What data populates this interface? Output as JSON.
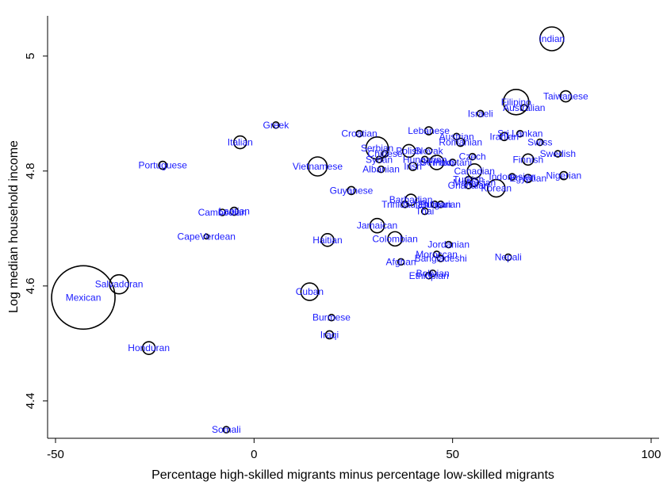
{
  "chart_data": {
    "type": "scatter",
    "title": "",
    "xlabel": "Percentage high-skilled migrants minus percentage low-skilled migrants",
    "ylabel": "Log median household income",
    "xlim": [
      -52,
      102
    ],
    "ylim": [
      4.335,
      5.07
    ],
    "xticks": [
      -50,
      0,
      50,
      100
    ],
    "xtick_labels": [
      "-50",
      "0",
      "50",
      "100"
    ],
    "yticks": [
      4.4,
      4.6,
      4.8,
      5.0
    ],
    "ytick_labels": [
      "4.4",
      "4.6",
      "4.8",
      "5"
    ],
    "grid": false,
    "legend": "none",
    "marker": "hollow circle (size proportional to group weight)",
    "colors": {
      "marker": "#000000",
      "label": "#1a1aff"
    },
    "points": [
      {
        "label": "Indian",
        "x": 75,
        "y": 5.03,
        "size": 15
      },
      {
        "label": "Taiwanese",
        "x": 78.5,
        "y": 4.93,
        "size": 7
      },
      {
        "label": "Filipino",
        "x": 66,
        "y": 4.92,
        "size": 16
      },
      {
        "label": "Australian",
        "x": 68,
        "y": 4.91,
        "size": 4
      },
      {
        "label": "Israeli",
        "x": 57,
        "y": 4.9,
        "size": 4
      },
      {
        "label": "Greek",
        "x": 5.5,
        "y": 4.88,
        "size": 4
      },
      {
        "label": "Lebanese",
        "x": 44,
        "y": 4.87,
        "size": 5
      },
      {
        "label": "Sri Lankan",
        "x": 67,
        "y": 4.865,
        "size": 4
      },
      {
        "label": "Croatian",
        "x": 26.5,
        "y": 4.865,
        "size": 4
      },
      {
        "label": "Austrian",
        "x": 51,
        "y": 4.86,
        "size": 4
      },
      {
        "label": "Iranian",
        "x": 63,
        "y": 4.86,
        "size": 5
      },
      {
        "label": "Italian",
        "x": -3.5,
        "y": 4.85,
        "size": 8
      },
      {
        "label": "Romanian",
        "x": 52,
        "y": 4.85,
        "size": 5
      },
      {
        "label": "Swiss",
        "x": 72,
        "y": 4.85,
        "size": 4
      },
      {
        "label": "Serbian",
        "x": 31,
        "y": 4.84,
        "size": 14
      },
      {
        "label": "Polish",
        "x": 39,
        "y": 4.835,
        "size": 8
      },
      {
        "label": "Slovak",
        "x": 44,
        "y": 4.835,
        "size": 4
      },
      {
        "label": "Chinese",
        "x": 33,
        "y": 4.83,
        "size": 4
      },
      {
        "label": "Swedish",
        "x": 76.5,
        "y": 4.83,
        "size": 4
      },
      {
        "label": "Czech",
        "x": 55,
        "y": 4.825,
        "size": 4
      },
      {
        "label": "Syrian",
        "x": 31.5,
        "y": 4.82,
        "size": 4
      },
      {
        "label": "Hungarian",
        "x": 43,
        "y": 4.82,
        "size": 4
      },
      {
        "label": "Pakistani",
        "x": 50,
        "y": 4.815,
        "size": 4
      },
      {
        "label": "Finnish",
        "x": 69,
        "y": 4.82,
        "size": 7
      },
      {
        "label": "Portuguese",
        "x": -23,
        "y": 4.81,
        "size": 5
      },
      {
        "label": "Vietnamese",
        "x": 16,
        "y": 4.808,
        "size": 12
      },
      {
        "label": "German",
        "x": 46,
        "y": 4.815,
        "size": 9
      },
      {
        "label": "Irish",
        "x": 40,
        "y": 4.808,
        "size": 5
      },
      {
        "label": "Albanian",
        "x": 32,
        "y": 4.803,
        "size": 4
      },
      {
        "label": "Canadian",
        "x": 55.5,
        "y": 4.8,
        "size": 9
      },
      {
        "label": "Nigerian",
        "x": 78,
        "y": 4.792,
        "size": 5
      },
      {
        "label": "Indonesian",
        "x": 65,
        "y": 4.79,
        "size": 4
      },
      {
        "label": "Egyptian",
        "x": 69,
        "y": 4.787,
        "size": 5
      },
      {
        "label": "Turkish",
        "x": 54,
        "y": 4.785,
        "size": 4
      },
      {
        "label": "Malaysian",
        "x": 55.5,
        "y": 4.78,
        "size": 5
      },
      {
        "label": "Ghanaian",
        "x": 54,
        "y": 4.775,
        "size": 4
      },
      {
        "label": "Korean",
        "x": 61,
        "y": 4.77,
        "size": 11
      },
      {
        "label": "Guyanese",
        "x": 24.5,
        "y": 4.766,
        "size": 5
      },
      {
        "label": "Barbadian",
        "x": 39.5,
        "y": 4.75,
        "size": 7
      },
      {
        "label": "Trinidadian",
        "x": 38,
        "y": 4.742,
        "size": 4
      },
      {
        "label": "Bulgarian",
        "x": 47,
        "y": 4.742,
        "size": 4
      },
      {
        "label": "Eritrean",
        "x": 45.5,
        "y": 4.742,
        "size": 4
      },
      {
        "label": "Cambodian",
        "x": -8,
        "y": 4.728,
        "size": 4
      },
      {
        "label": "Laotian",
        "x": -5,
        "y": 4.73,
        "size": 5
      },
      {
        "label": "Thai",
        "x": 43,
        "y": 4.73,
        "size": 4
      },
      {
        "label": "Jamaican",
        "x": 31,
        "y": 4.705,
        "size": 9
      },
      {
        "label": "CapeVerdean",
        "x": -12,
        "y": 4.686,
        "size": 3
      },
      {
        "label": "Colombian",
        "x": 35.5,
        "y": 4.682,
        "size": 9
      },
      {
        "label": "Haitian",
        "x": 18.5,
        "y": 4.68,
        "size": 8
      },
      {
        "label": "Jordanian",
        "x": 49,
        "y": 4.672,
        "size": 4
      },
      {
        "label": "Moroccan",
        "x": 46,
        "y": 4.655,
        "size": 4
      },
      {
        "label": "Nepali",
        "x": 64,
        "y": 4.65,
        "size": 4
      },
      {
        "label": "Bangladeshi",
        "x": 47,
        "y": 4.648,
        "size": 4
      },
      {
        "label": "Afghan",
        "x": 37,
        "y": 4.642,
        "size": 4
      },
      {
        "label": "Bolivian",
        "x": 45,
        "y": 4.622,
        "size": 4
      },
      {
        "label": "Ethiopian",
        "x": 44,
        "y": 4.618,
        "size": 4
      },
      {
        "label": "Salvadoran",
        "x": -34,
        "y": 4.603,
        "size": 12
      },
      {
        "label": "Cuban",
        "x": 14,
        "y": 4.59,
        "size": 11
      },
      {
        "label": "Mexican",
        "x": -43,
        "y": 4.58,
        "size": 40
      },
      {
        "label": "Burmese",
        "x": 19.5,
        "y": 4.545,
        "size": 4
      },
      {
        "label": "Iraqi",
        "x": 19,
        "y": 4.515,
        "size": 5
      },
      {
        "label": "Honduran",
        "x": -26.5,
        "y": 4.492,
        "size": 8
      },
      {
        "label": "Somali",
        "x": -7,
        "y": 4.35,
        "size": 4
      }
    ]
  }
}
